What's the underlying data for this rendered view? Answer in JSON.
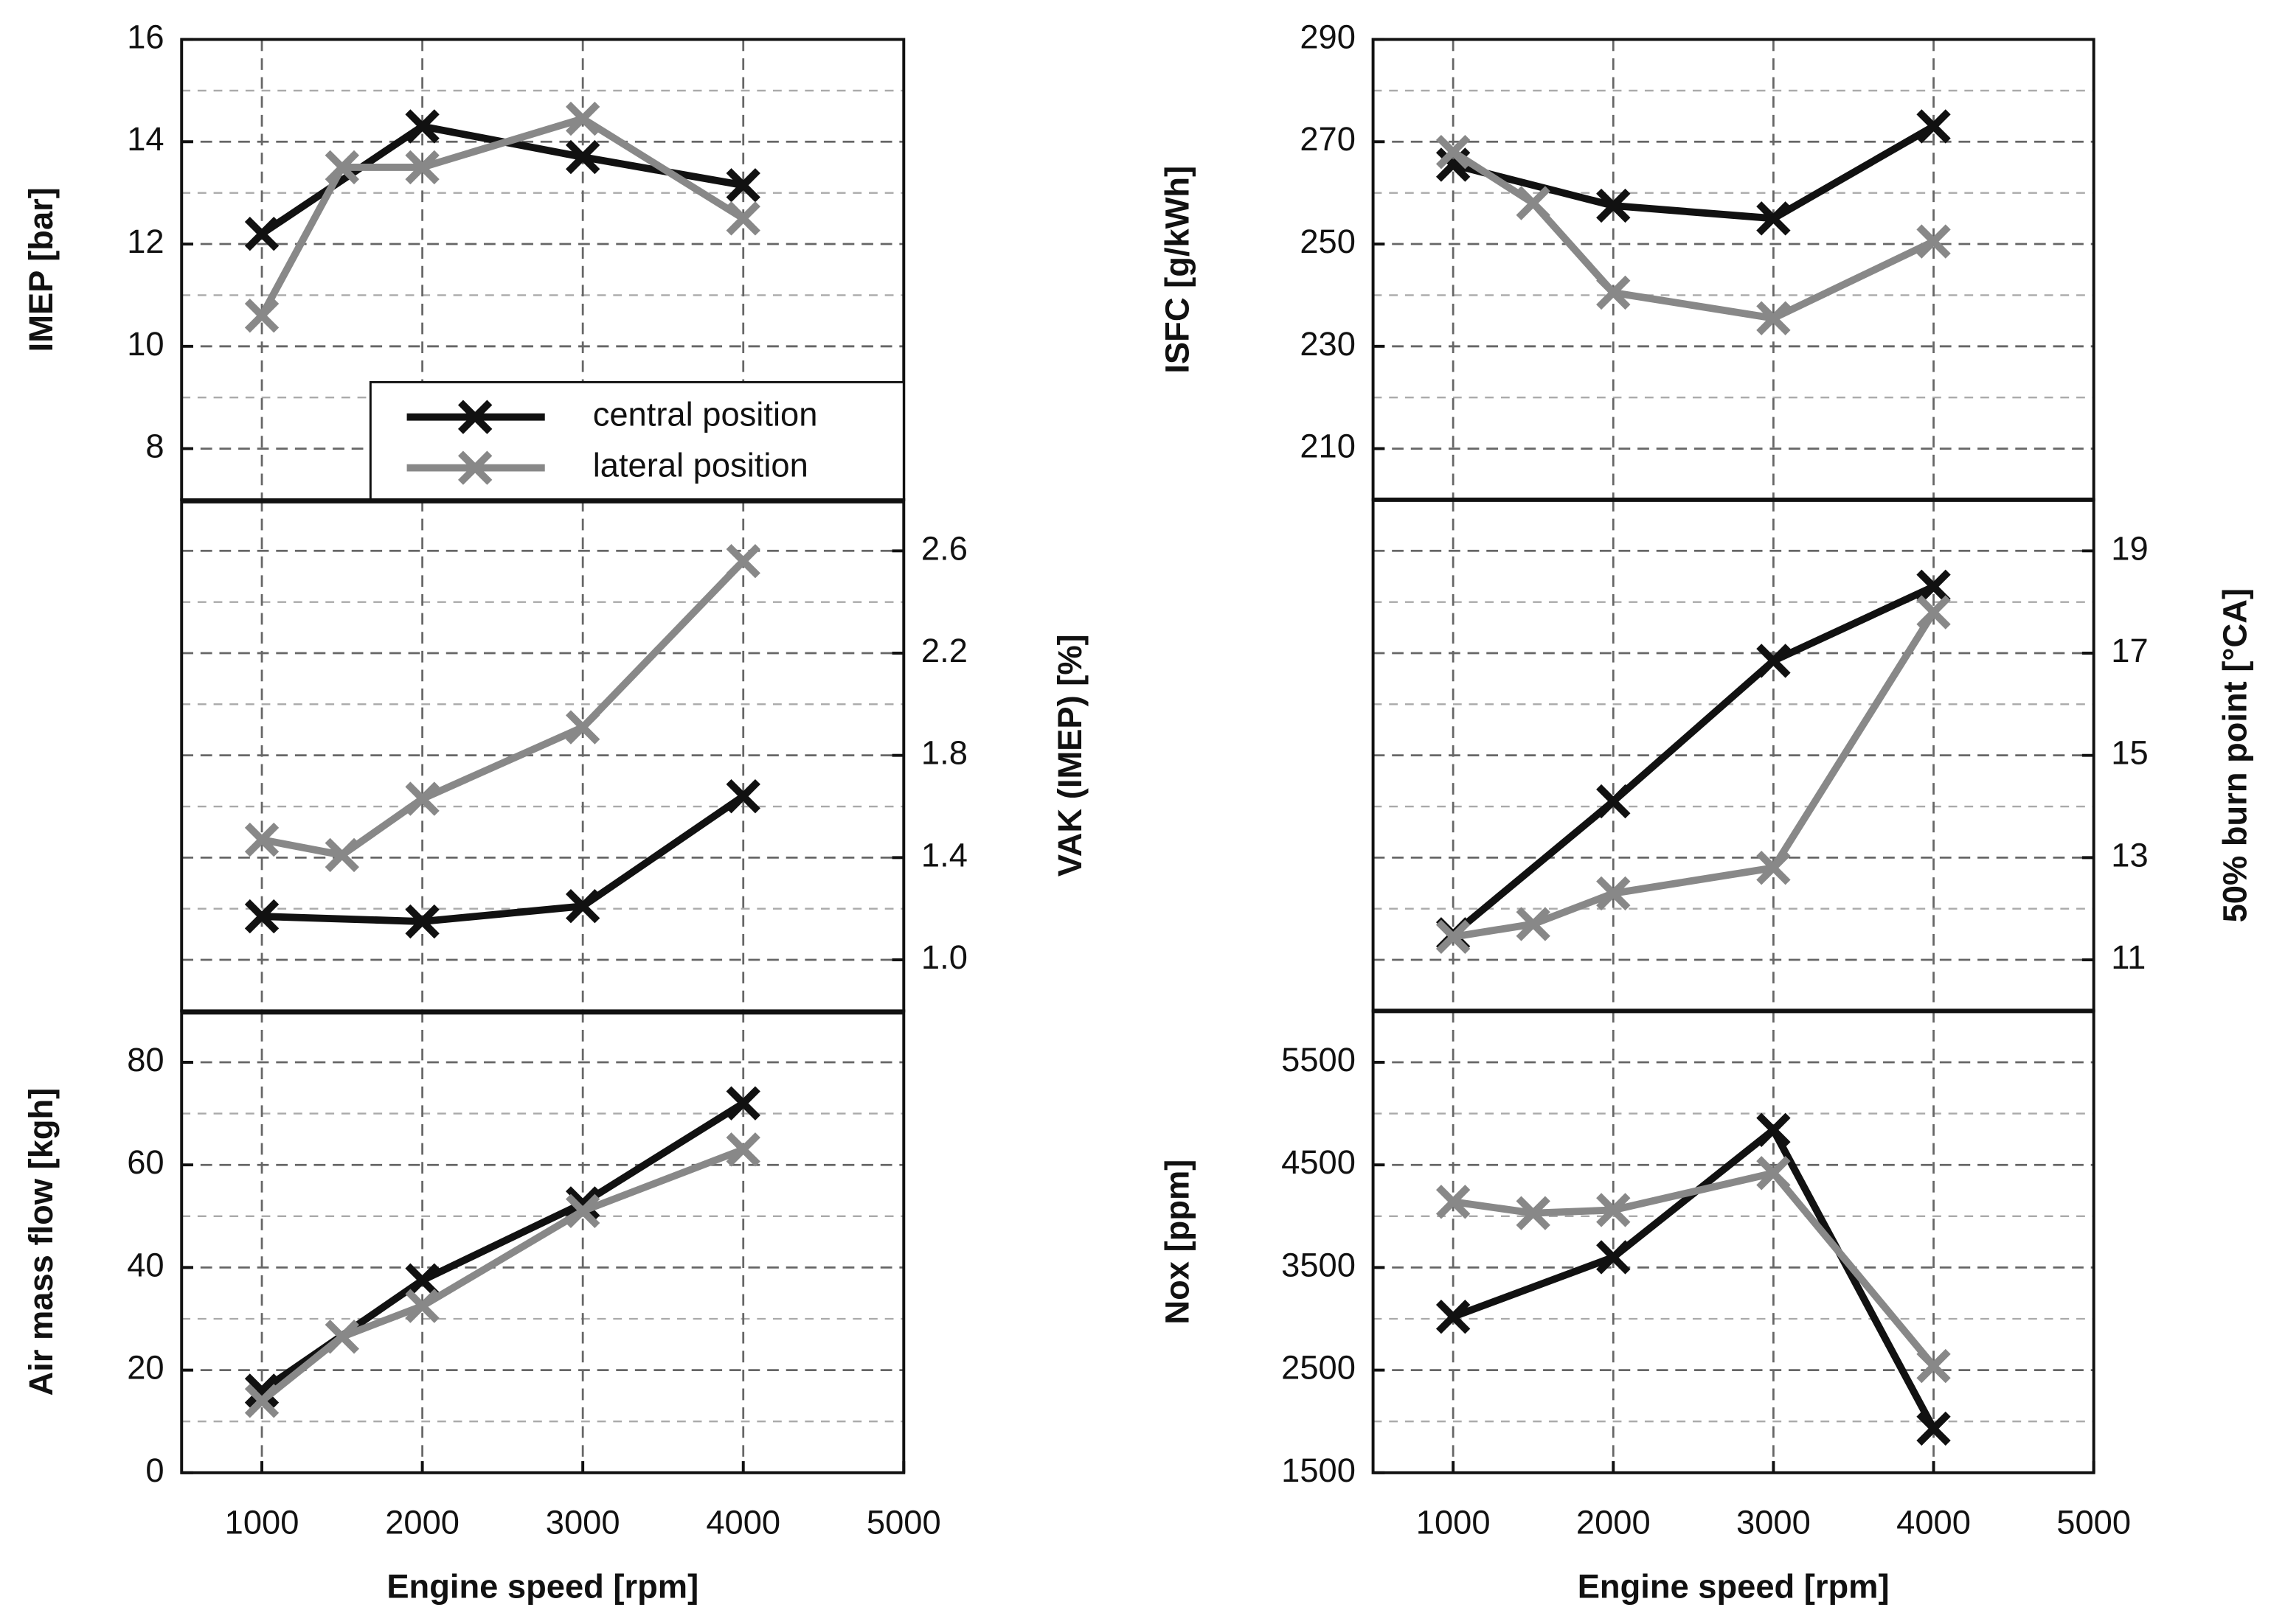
{
  "chart_data": [
    {
      "type": "line",
      "ylabel": "IMEP [bar]",
      "xlim": [
        500,
        5000
      ],
      "xticks": [
        1000,
        2000,
        3000,
        4000,
        5000
      ],
      "ylim": [
        7,
        16
      ],
      "yticks": [
        8,
        10,
        12,
        14,
        16
      ],
      "minor_yticks": [
        9,
        11,
        13,
        15
      ],
      "y_axis_side": "left",
      "grid": true,
      "legend": "lower right",
      "series": [
        {
          "name": "central position",
          "color": "#111111",
          "x": [
            1000,
            2000,
            3000,
            4000
          ],
          "values": [
            12.2,
            14.3,
            13.7,
            13.15
          ]
        },
        {
          "name": "lateral position",
          "color": "#888888",
          "x": [
            1000,
            1500,
            2000,
            3000,
            4000
          ],
          "values": [
            10.6,
            13.5,
            13.5,
            14.45,
            12.5
          ]
        }
      ]
    },
    {
      "type": "line",
      "ylabel": "ISFC [g/kWh]",
      "xlim": [
        500,
        5000
      ],
      "xticks": [
        1000,
        2000,
        3000,
        4000,
        5000
      ],
      "ylim": [
        200,
        290
      ],
      "yticks": [
        210,
        230,
        250,
        270,
        290
      ],
      "minor_yticks": [
        220,
        240,
        260,
        280
      ],
      "y_axis_side": "left",
      "grid": true,
      "series": [
        {
          "color": "#111111",
          "x": [
            1000,
            2000,
            3000,
            4000
          ],
          "values": [
            265.5,
            257.5,
            255,
            273
          ]
        },
        {
          "color": "#888888",
          "x": [
            1000,
            1500,
            2000,
            3000,
            4000
          ],
          "values": [
            268,
            258,
            240.5,
            235.5,
            250.5
          ]
        }
      ]
    },
    {
      "type": "line",
      "ylabel": "VAK (IMEP) [%]",
      "xlim": [
        500,
        5000
      ],
      "xticks": [
        1000,
        2000,
        3000,
        4000,
        5000
      ],
      "ylim": [
        0.8,
        2.8
      ],
      "yticks": [
        {
          "value": 1,
          "label": "1.0"
        },
        1.4,
        1.8,
        2.2,
        2.6
      ],
      "minor_yticks": [
        1.2,
        1.6,
        2.0,
        2.4
      ],
      "y_axis_side": "right",
      "grid": true,
      "series": [
        {
          "color": "#111111",
          "x": [
            1000,
            2000,
            3000,
            4000
          ],
          "values": [
            1.17,
            1.15,
            1.21,
            1.64
          ]
        },
        {
          "color": "#888888",
          "x": [
            1000,
            1500,
            2000,
            3000,
            4000
          ],
          "values": [
            1.47,
            1.41,
            1.63,
            1.91,
            2.56
          ]
        }
      ]
    },
    {
      "type": "line",
      "ylabel": "50% burn point [°CA]",
      "xlim": [
        500,
        5000
      ],
      "xticks": [
        1000,
        2000,
        3000,
        4000,
        5000
      ],
      "ylim": [
        10,
        20
      ],
      "yticks": [
        11,
        13,
        15,
        17,
        19
      ],
      "minor_yticks": [
        12,
        14,
        16,
        18
      ],
      "y_axis_side": "right",
      "grid": true,
      "series": [
        {
          "color": "#111111",
          "x": [
            1000,
            2000,
            3000,
            4000
          ],
          "values": [
            11.5,
            14.1,
            16.85,
            18.3
          ]
        },
        {
          "color": "#888888",
          "x": [
            1000,
            1500,
            2000,
            3000,
            4000
          ],
          "values": [
            11.45,
            11.7,
            12.3,
            12.8,
            17.8
          ]
        }
      ]
    },
    {
      "type": "line",
      "ylabel": "Air mass flow [kgh]",
      "xlabel": "Engine speed [rpm]",
      "xlim": [
        500,
        5000
      ],
      "xticks": [
        1000,
        2000,
        3000,
        4000,
        5000
      ],
      "ylim": [
        0,
        90
      ],
      "yticks": [
        0,
        20,
        40,
        60,
        80
      ],
      "minor_yticks": [
        10,
        30,
        50,
        70
      ],
      "y_axis_side": "left",
      "grid": true,
      "series": [
        {
          "color": "#111111",
          "x": [
            1000,
            2000,
            3000,
            4000
          ],
          "values": [
            16,
            37.5,
            52.5,
            72
          ]
        },
        {
          "color": "#888888",
          "x": [
            1000,
            1500,
            2000,
            3000,
            4000
          ],
          "values": [
            14,
            26.5,
            32.5,
            51,
            63
          ]
        }
      ]
    },
    {
      "type": "line",
      "ylabel": "Nox [ppm]",
      "xlabel": "Engine speed [rpm]",
      "xlim": [
        500,
        5000
      ],
      "xticks": [
        1000,
        2000,
        3000,
        4000,
        5000
      ],
      "ylim": [
        1500,
        6000
      ],
      "yticks": [
        1500,
        2500,
        3500,
        4500,
        5500
      ],
      "minor_yticks": [
        2000,
        3000,
        4000,
        5000
      ],
      "y_axis_side": "left",
      "grid": true,
      "series": [
        {
          "color": "#111111",
          "x": [
            1000,
            2000,
            3000,
            4000
          ],
          "values": [
            3020,
            3600,
            4840,
            1930
          ]
        },
        {
          "color": "#888888",
          "x": [
            1000,
            1500,
            2000,
            3000,
            4000
          ],
          "values": [
            4140,
            4030,
            4060,
            4420,
            2540
          ]
        }
      ]
    }
  ]
}
